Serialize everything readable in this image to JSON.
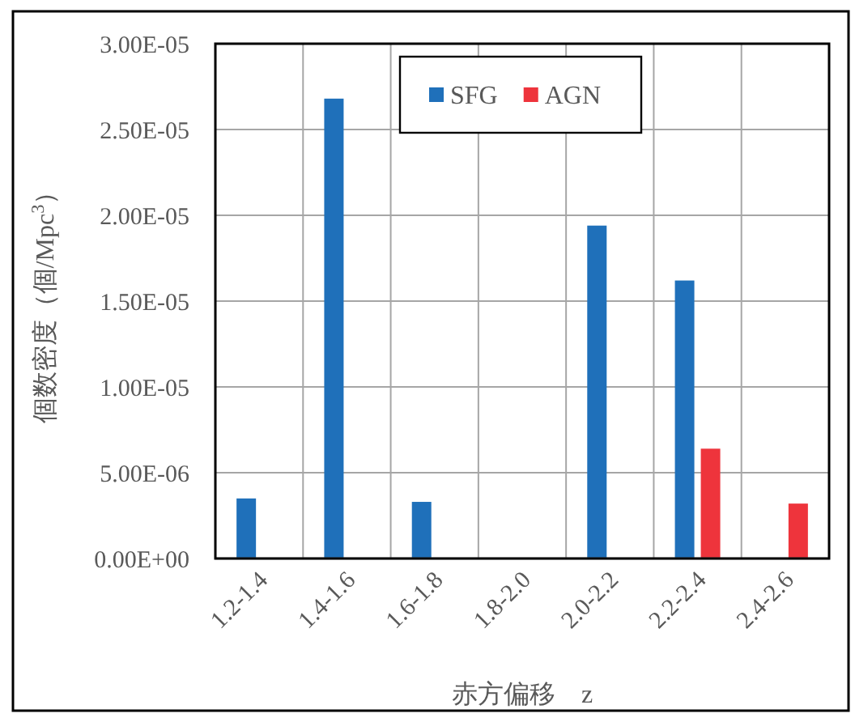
{
  "chart_data": {
    "type": "bar",
    "xlabel": "赤方偏移　z",
    "ylabel": "個数密度（個/Mpc$^{3}$）",
    "categories": [
      "1.2-1.4",
      "1.4-1.6",
      "1.6-1.8",
      "1.8-2.0",
      "2.0-2.2",
      "2.2-2.4",
      "2.4-2.6"
    ],
    "series": [
      {
        "name": "SFG",
        "color": "#1f70ba",
        "values": [
          3.5e-06,
          2.68e-05,
          3.3e-06,
          null,
          1.94e-05,
          1.62e-05,
          null
        ]
      },
      {
        "name": "AGN",
        "color": "#ee343c",
        "values": [
          null,
          null,
          null,
          null,
          null,
          6.4e-06,
          3.2e-06
        ]
      }
    ],
    "ylim": [
      0,
      3e-05
    ],
    "yticks": [
      {
        "value": 0,
        "label": "0.00E+00"
      },
      {
        "value": 5e-06,
        "label": "5.00E-06"
      },
      {
        "value": 1e-05,
        "label": "1.00E-05"
      },
      {
        "value": 1.5e-05,
        "label": "1.50E-05"
      },
      {
        "value": 2e-05,
        "label": "2.00E-05"
      },
      {
        "value": 2.5e-05,
        "label": "2.50E-05"
      },
      {
        "value": 3e-05,
        "label": "3.00E-05"
      }
    ],
    "grid": true,
    "legend": "top"
  }
}
